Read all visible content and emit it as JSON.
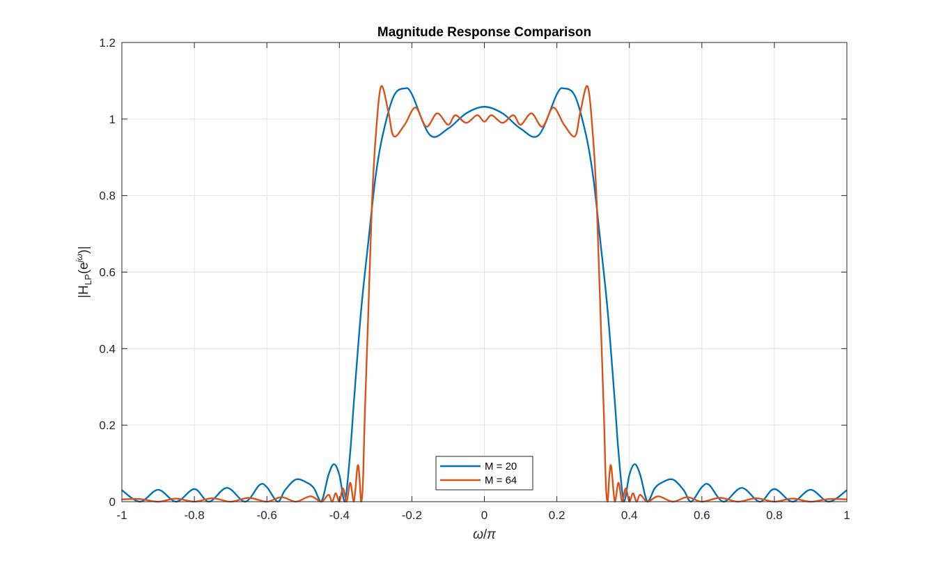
{
  "chart_data": {
    "type": "line",
    "title": "Magnitude Response Comparison",
    "xlabel": {
      "omega": "ω",
      "slash": "/",
      "pi": "π"
    },
    "ylabel": {
      "prefix": "|H",
      "sub": "LP",
      "mid": "(e",
      "sup": "jω",
      "suffix": ")|"
    },
    "xlim": [
      -1,
      1
    ],
    "ylim": [
      0,
      1.2
    ],
    "xticks": [
      -1,
      -0.8,
      -0.6,
      -0.4,
      -0.2,
      0,
      0.2,
      0.4,
      0.6,
      0.8,
      1
    ],
    "xtick_labels": [
      "-1",
      "-0.8",
      "-0.6",
      "-0.4",
      "-0.2",
      "0",
      "0.2",
      "0.4",
      "0.6",
      "0.8",
      "1"
    ],
    "yticks": [
      0,
      0.2,
      0.4,
      0.6,
      0.8,
      1,
      1.2
    ],
    "ytick_labels": [
      "0",
      "0.2",
      "0.4",
      "0.6",
      "0.8",
      "1",
      "1.2"
    ],
    "grid": true,
    "legend_position": "bottom-center",
    "series": [
      {
        "name": "M = 20",
        "color": "#0072BD",
        "x": [
          0,
          0.05,
          0.1,
          0.15,
          0.2,
          0.22,
          0.25,
          0.28,
          0.3,
          0.32,
          0.34,
          0.36,
          0.37,
          0.385,
          0.4,
          0.415,
          0.43,
          0.45,
          0.47,
          0.49,
          0.52,
          0.55,
          0.57,
          0.6,
          0.62,
          0.66,
          0.71,
          0.76,
          0.8,
          0.85,
          0.9,
          0.95,
          1.0
        ],
        "y": [
          1.032,
          1.015,
          0.975,
          0.958,
          1.065,
          1.08,
          1.06,
          0.96,
          0.85,
          0.68,
          0.5,
          0.26,
          0.13,
          0.0,
          0.07,
          0.098,
          0.07,
          0.0,
          0.035,
          0.05,
          0.058,
          0.03,
          0.0,
          0.038,
          0.044,
          0.0,
          0.036,
          0.0,
          0.033,
          0.0,
          0.031,
          0.0,
          0.03
        ]
      },
      {
        "name": "M = 64",
        "color": "#D95319",
        "x": [
          0,
          0.02,
          0.05,
          0.08,
          0.1,
          0.13,
          0.16,
          0.19,
          0.22,
          0.25,
          0.265,
          0.285,
          0.3,
          0.31,
          0.32,
          0.33,
          0.335,
          0.34,
          0.345,
          0.35,
          0.36,
          0.37,
          0.38,
          0.39,
          0.4,
          0.41,
          0.42,
          0.43,
          0.45,
          0.48,
          0.52,
          0.56,
          0.6,
          0.65,
          0.7,
          0.75,
          0.8,
          0.85,
          0.9,
          0.95,
          1.0
        ],
        "y": [
          0.993,
          1.01,
          0.99,
          1.01,
          0.985,
          1.015,
          0.98,
          1.03,
          0.985,
          0.955,
          1.02,
          1.085,
          0.95,
          0.78,
          0.5,
          0.22,
          0.05,
          0.0,
          0.07,
          0.092,
          0.0,
          0.05,
          0.0,
          0.035,
          0.0,
          0.022,
          0.0,
          0.018,
          0.0,
          0.014,
          0.0,
          0.012,
          0.0,
          0.01,
          0.0,
          0.009,
          0.0,
          0.008,
          0.0,
          0.007,
          0.006
        ]
      }
    ]
  }
}
